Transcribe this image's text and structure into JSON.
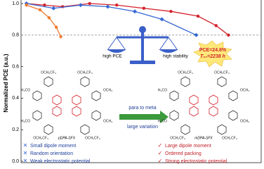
{
  "chart_data": {
    "type": "line",
    "y_label": "Normalized PCE (a.u.)",
    "ylim": [
      0,
      1.0
    ],
    "yticks": [
      {
        "value": 0,
        "label": "0.0"
      },
      {
        "value": 0.2,
        "label": "0.2"
      },
      {
        "value": 0.4,
        "label": "0.4"
      },
      {
        "value": 0.6,
        "label": "0.6"
      },
      {
        "value": 0.8,
        "label": "0.8"
      },
      {
        "value": 1.0,
        "label": "1.0"
      }
    ],
    "xlim": [
      -60,
      2600
    ],
    "threshold": 0.8,
    "series": [
      {
        "color": "#d4212b",
        "marker": "circle",
        "x": [
          0,
          200,
          400,
          700,
          1000,
          1300,
          1600,
          1900,
          2100,
          2238
        ],
        "values": [
          1.0,
          0.99,
          0.98,
          1.0,
          0.99,
          0.97,
          0.95,
          0.92,
          0.86,
          0.8
        ]
      },
      {
        "color": "#3568d4",
        "marker": "diamond",
        "x": [
          0,
          300,
          600,
          900,
          1200,
          1500,
          1880
        ],
        "values": [
          1.0,
          0.97,
          0.99,
          0.98,
          0.95,
          0.9,
          0.8
        ]
      },
      {
        "color": "#f07a2e",
        "marker": "circle",
        "x": [
          0,
          150,
          250,
          330,
          380
        ],
        "values": [
          0.99,
          0.96,
          0.91,
          0.85,
          0.79
        ]
      }
    ]
  },
  "scheme": {
    "balance": {
      "left": "high PCE",
      "right": "high stability"
    },
    "badge": {
      "pce": "PCE=24.8%",
      "t80": "T₈₀=2238 h"
    },
    "arrow": {
      "top": "para to meta",
      "bottom": "large variation"
    },
    "left_molecule": {
      "name": "pDPA-SFX",
      "groups": [
        "OCH₂CF₃",
        "OCH₂CF₃",
        "H₃CO",
        "OCH₃",
        "H₃CO",
        "OCH₃",
        "OCH₂CF₃",
        "OCH₂CF₃"
      ]
    },
    "right_molecule": {
      "name": "mDPA-SFX",
      "groups": [
        "OCH₂CF₃",
        "OCH₂CF₃",
        "H₃CO",
        "OCH₃",
        "H₃CO",
        "OCH₃",
        "OCH₂CF₃",
        "OCH₂CF₃"
      ]
    },
    "left_list": [
      "Small dipole moment",
      "Random orientation",
      "Weak electrostatic potential"
    ],
    "right_list": [
      "Large dipole moment",
      "Ordered packing",
      "Strong electrostatic potential"
    ]
  }
}
